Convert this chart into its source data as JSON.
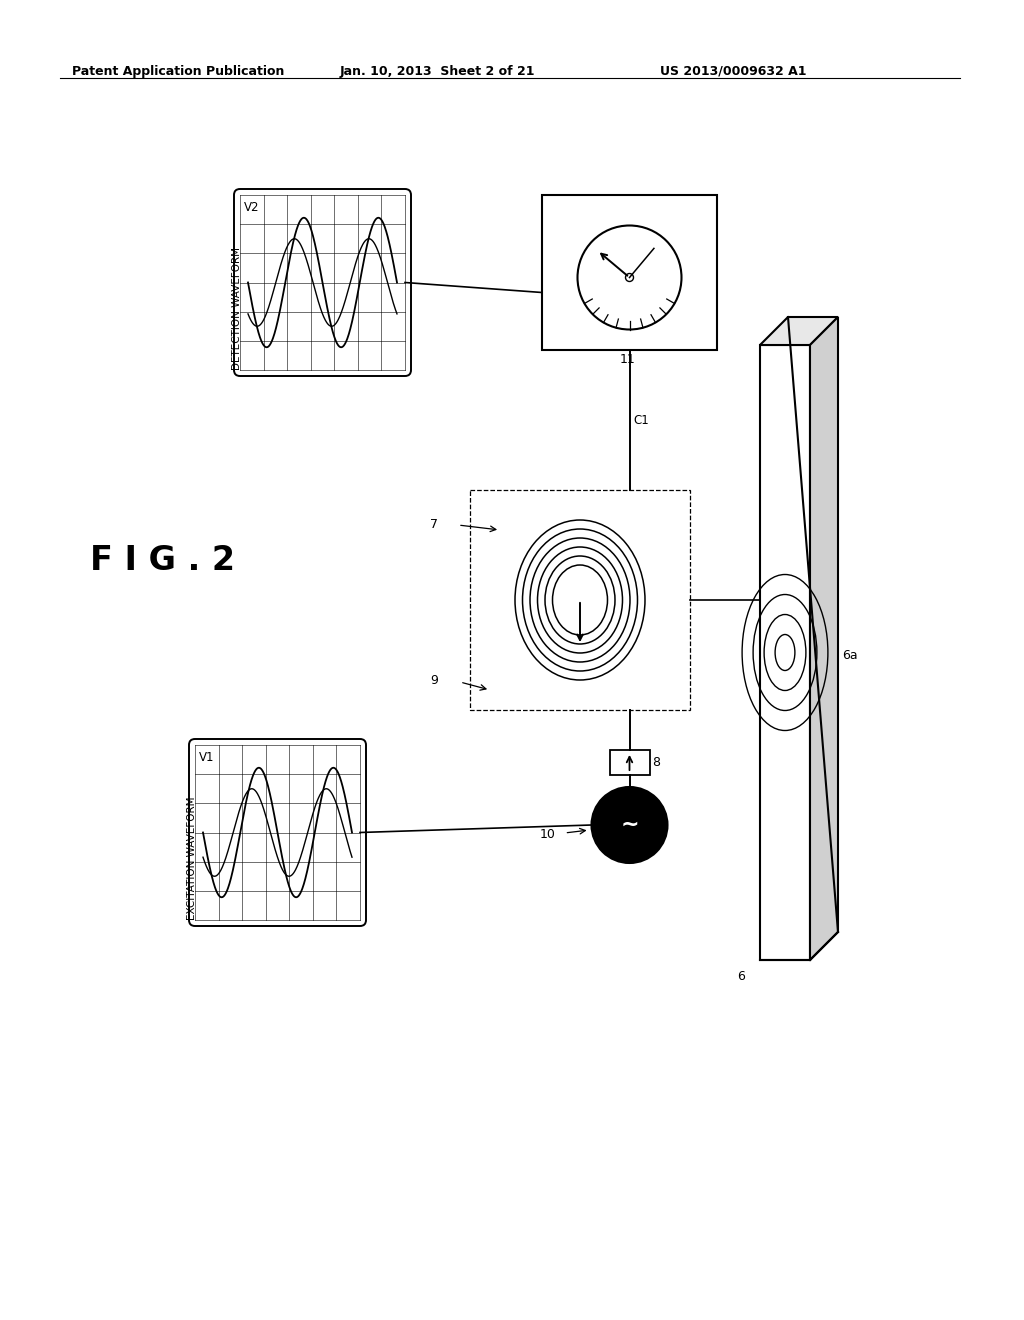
{
  "bg_color": "#ffffff",
  "header_text": "Patent Application Publication",
  "header_date": "Jan. 10, 2013  Sheet 2 of 21",
  "header_patent": "US 2013/0009632 A1",
  "fig_label": "F I G . 2",
  "labels": {
    "det_waveform": "DETECTION WAVEFORM",
    "exc_waveform": "EXCITATION WAVEFORM",
    "v1": "V1",
    "v2": "V2",
    "c1": "C1",
    "n7": "7",
    "n8": "8",
    "n9": "9",
    "n10": "10",
    "n11": "11",
    "n6": "6",
    "n6a": "6a"
  }
}
